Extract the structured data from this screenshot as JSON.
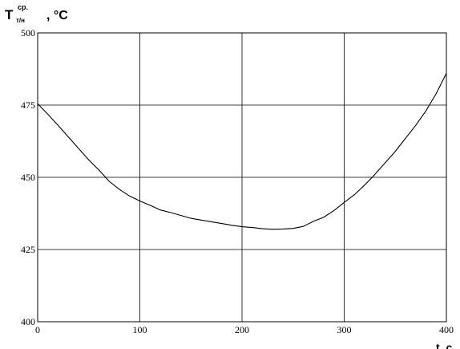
{
  "chart_data": {
    "type": "line",
    "xlabel": "t, c",
    "ylabel": {
      "main": "T",
      "sup": "ср.",
      "sub": "т/н",
      "unit": ", °C"
    },
    "xlim": [
      0,
      400
    ],
    "ylim": [
      400,
      500
    ],
    "x_ticks": [
      0,
      100,
      200,
      300,
      400
    ],
    "y_ticks": [
      400,
      425,
      450,
      475,
      500
    ],
    "grid": true,
    "series": [
      {
        "color": "#000000",
        "x": [
          0,
          10,
          20,
          30,
          40,
          50,
          60,
          70,
          80,
          90,
          100,
          110,
          120,
          130,
          140,
          150,
          160,
          170,
          180,
          190,
          200,
          210,
          220,
          230,
          240,
          250,
          260,
          270,
          280,
          290,
          300,
          310,
          320,
          330,
          340,
          350,
          360,
          370,
          380,
          390,
          400
        ],
        "y": [
          475.5,
          471.8,
          468.0,
          464.0,
          460.0,
          456.0,
          452.5,
          448.6,
          445.8,
          443.5,
          441.8,
          440.3,
          438.7,
          437.8,
          436.8,
          435.8,
          435.2,
          434.6,
          434.0,
          433.4,
          432.9,
          432.6,
          432.2,
          432.0,
          432.1,
          432.3,
          433.0,
          434.8,
          436.2,
          438.5,
          441.3,
          444.0,
          447.3,
          451.0,
          455.0,
          459.0,
          463.5,
          468.0,
          473.0,
          479.0,
          486.0
        ]
      }
    ]
  }
}
